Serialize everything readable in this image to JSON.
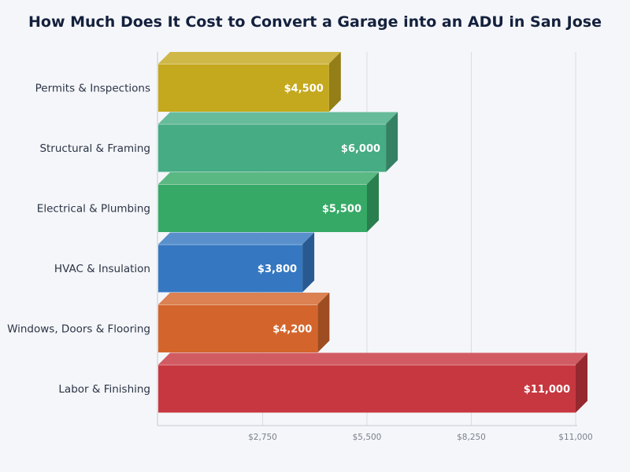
{
  "chart_data": {
    "type": "bar",
    "orientation": "horizontal",
    "style": "3d",
    "title": "How Much Does It Cost to Convert a Garage into an ADU in San Jose",
    "xlabel": "",
    "ylabel": "",
    "xlim": [
      0,
      11000
    ],
    "xticks": [
      2750,
      5500,
      8250,
      11000
    ],
    "xtick_labels": [
      "$2,750",
      "$5,500",
      "$8,250",
      "$11,000"
    ],
    "grid": true,
    "legend": "none",
    "categories": [
      "Permits & Inspections",
      "Structural & Framing",
      "Electrical & Plumbing",
      "HVAC & Insulation",
      "Windows, Doors & Flooring",
      "Labor & Finishing"
    ],
    "values": [
      4500,
      6000,
      5500,
      3800,
      4200,
      11000
    ],
    "value_labels": [
      "$4,500",
      "$6,000",
      "$5,500",
      "$3,800",
      "$4,200",
      "$11,000"
    ],
    "colors": [
      "#c4a81e",
      "#45ac84",
      "#36a966",
      "#3578c1",
      "#d3652c",
      "#c7373f"
    ]
  }
}
